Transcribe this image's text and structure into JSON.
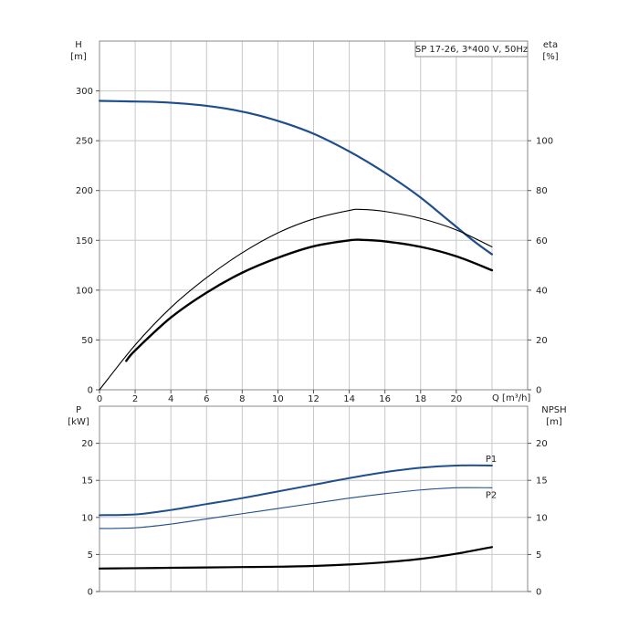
{
  "chart_data": [
    {
      "type": "line",
      "legend": "SP 17-26, 3*400 V, 50Hz",
      "xlabel": "Q [m³/h]",
      "x_ticks": [
        "0",
        "2",
        "4",
        "6",
        "8",
        "10",
        "12",
        "14",
        "16",
        "18",
        "20"
      ],
      "xlim": [
        0,
        24
      ],
      "left_axis": {
        "label_line1": "H",
        "label_line2": "[m]",
        "ylim": [
          0,
          350
        ],
        "ticks": [
          "0",
          "50",
          "100",
          "150",
          "200",
          "250",
          "300"
        ]
      },
      "right_axis": {
        "label_line1": "eta",
        "label_line2": "[%]",
        "ylim": [
          0,
          140
        ],
        "ticks": [
          "0",
          "20",
          "40",
          "60",
          "80",
          "100"
        ]
      },
      "grid": true,
      "series": [
        {
          "axis": "left",
          "color": "#1f4e8c",
          "x": [
            0,
            1.5,
            3,
            4.5,
            6,
            7.5,
            9,
            10.5,
            12,
            13.5,
            15,
            16.5,
            18,
            19.5,
            21,
            22
          ],
          "values": [
            290,
            289.5,
            289,
            287.5,
            285,
            281,
            275,
            267,
            257,
            244,
            229,
            212,
            193,
            171,
            149,
            136
          ]
        },
        {
          "axis": "right",
          "color": "#000000",
          "x": [
            0,
            2,
            4,
            6,
            8,
            10,
            12,
            14,
            14.7,
            16,
            18,
            20,
            22
          ],
          "values": [
            0,
            18,
            33,
            45,
            55,
            63,
            68.6,
            72,
            72.4,
            71.6,
            68.8,
            64.2,
            57.4
          ]
        },
        {
          "axis": "right",
          "color": "#000000",
          "x": [
            1.5,
            2,
            4,
            6,
            8,
            10,
            12,
            14,
            14.7,
            16,
            18,
            20,
            22
          ],
          "values": [
            11.6,
            15.8,
            29,
            39,
            47,
            53,
            57.6,
            60,
            60.2,
            59.6,
            57.4,
            53.6,
            48
          ]
        }
      ]
    },
    {
      "type": "line",
      "left_axis": {
        "label_line1": "P",
        "label_line2": "[kW]",
        "ylim": [
          0,
          25
        ],
        "ticks": [
          "0",
          "5",
          "10",
          "15",
          "20"
        ]
      },
      "right_axis": {
        "label_line1": "NPSH",
        "label_line2": "[m]",
        "ylim": [
          0,
          25
        ],
        "ticks": [
          "0",
          "5",
          "10",
          "15",
          "20"
        ]
      },
      "xlim": [
        0,
        24
      ],
      "grid": true,
      "series": [
        {
          "name": "P1",
          "axis": "left",
          "color": "#1f4e8c",
          "x": [
            0,
            2,
            4,
            6,
            8,
            10,
            12,
            14,
            16,
            18,
            20,
            22
          ],
          "values": [
            10.3,
            10.4,
            11,
            11.8,
            12.6,
            13.5,
            14.4,
            15.3,
            16.1,
            16.7,
            17,
            17
          ]
        },
        {
          "name": "P2",
          "axis": "left",
          "color": "#1f4e8c",
          "x": [
            0,
            2,
            4,
            6,
            8,
            10,
            12,
            14,
            16,
            18,
            20,
            22
          ],
          "values": [
            8.5,
            8.6,
            9.1,
            9.8,
            10.5,
            11.2,
            11.9,
            12.6,
            13.2,
            13.7,
            14,
            14
          ]
        },
        {
          "axis": "right",
          "color": "#000000",
          "x": [
            0,
            2,
            4,
            6,
            8,
            10,
            12,
            14,
            16,
            18,
            20,
            22
          ],
          "values": [
            3.1,
            3.15,
            3.2,
            3.25,
            3.3,
            3.35,
            3.45,
            3.65,
            3.95,
            4.4,
            5.1,
            6
          ]
        }
      ]
    }
  ]
}
